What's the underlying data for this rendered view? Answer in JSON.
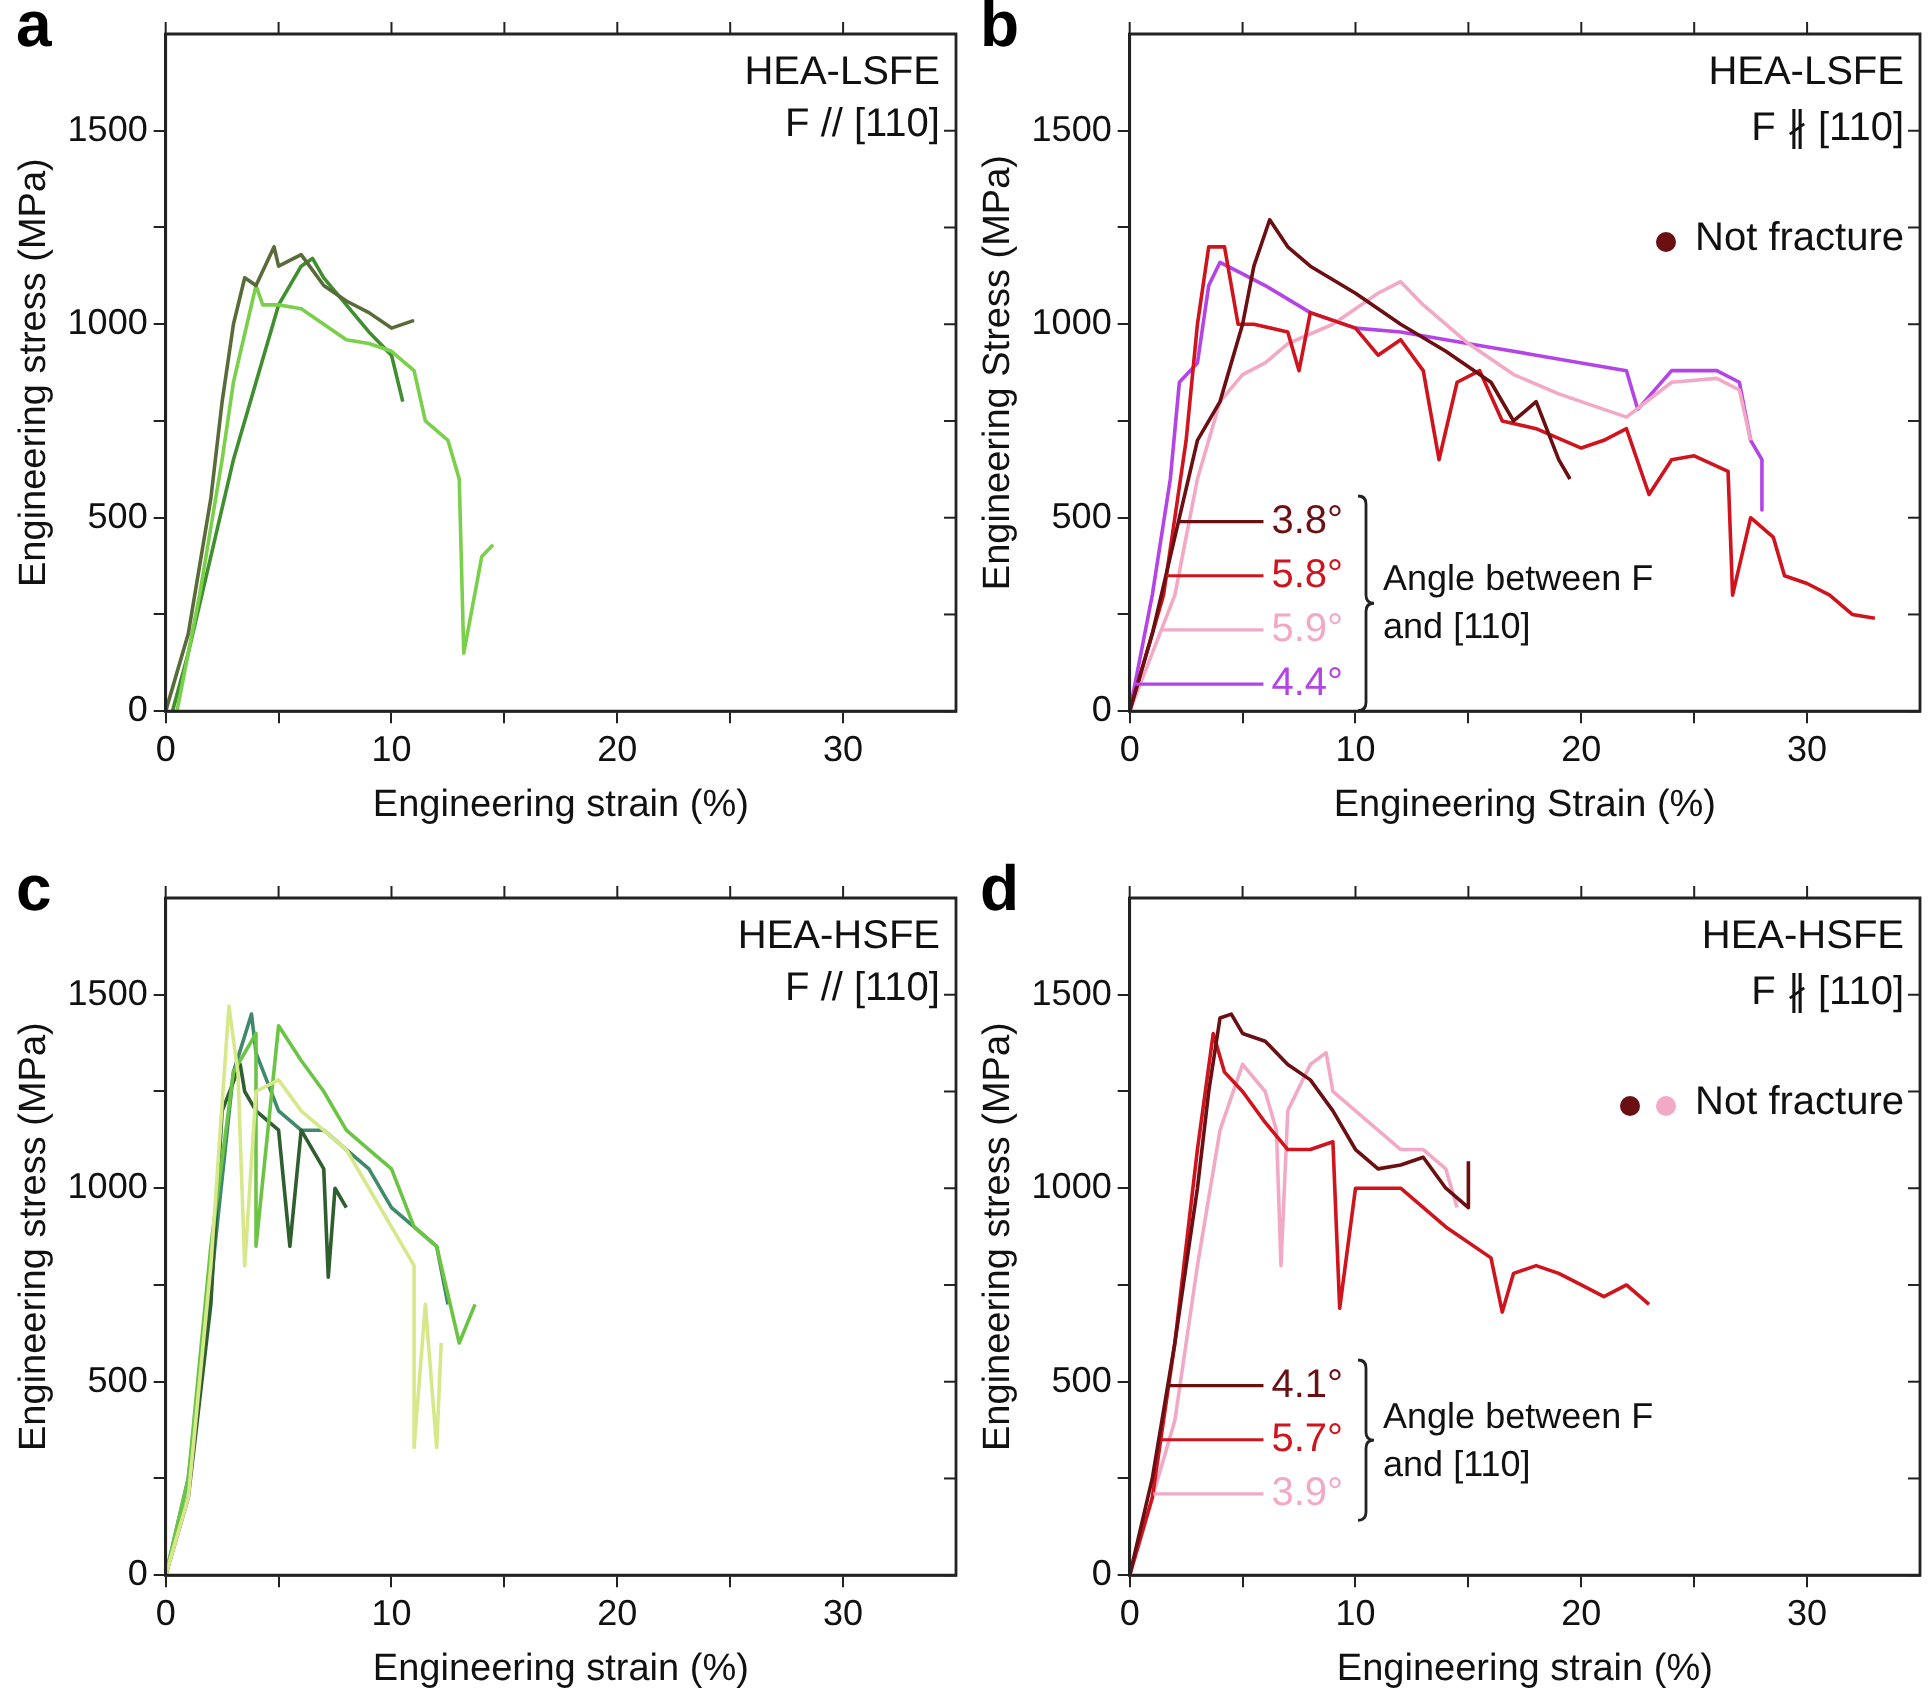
{
  "chart_data": [
    {
      "type": "line",
      "title": "a",
      "xlabel": "Engineering strain (%)",
      "ylabel": "Engineering stress (MPa)",
      "annotations": [
        "HEA-LSFE",
        "F // [110]"
      ],
      "xlim": [
        0,
        35
      ],
      "ylim": [
        0,
        1750
      ],
      "xticks": [
        0,
        {
          "value": 5,
          "label": null
        },
        10,
        {
          "value": 15,
          "label": null
        },
        20,
        {
          "value": 25,
          "label": null
        },
        30
      ],
      "yticks": [
        0,
        {
          "value": 250,
          "label": null
        },
        500,
        {
          "value": 750,
          "label": null
        },
        1000,
        {
          "value": 1250,
          "label": null
        },
        1500
      ],
      "series": [
        {
          "color": "#5a6b3a",
          "x": [
            0,
            1,
            2,
            2.5,
            3,
            3.5,
            4,
            4.8,
            5,
            6,
            7,
            8,
            9,
            10,
            11
          ],
          "values": [
            0,
            200,
            550,
            800,
            1000,
            1120,
            1100,
            1200,
            1150,
            1180,
            1100,
            1060,
            1030,
            990,
            1010
          ]
        },
        {
          "color": "#7ad04a",
          "x": [
            0.5,
            1.5,
            2.5,
            3,
            4,
            4.3,
            5,
            6,
            7,
            8,
            9,
            10,
            11,
            11.5,
            12.5,
            13,
            13.2,
            14,
            14.5
          ],
          "values": [
            0,
            300,
            650,
            850,
            1100,
            1050,
            1050,
            1040,
            1000,
            960,
            950,
            930,
            880,
            750,
            700,
            600,
            150,
            400,
            430
          ]
        },
        {
          "color": "#3f8f2f",
          "x": [
            0.3,
            1,
            2,
            3,
            4,
            5,
            6,
            6.5,
            7,
            8,
            9,
            10,
            10.5
          ],
          "values": [
            0,
            150,
            400,
            650,
            850,
            1050,
            1150,
            1170,
            1120,
            1050,
            980,
            920,
            800
          ]
        }
      ]
    },
    {
      "type": "line",
      "title": "b",
      "legend": "bottom left",
      "xlabel": "Engineering Strain (%)",
      "ylabel": "Engineering Stress (MPa)",
      "annotations": [
        "HEA-LSFE",
        "F ∦ [110]",
        "Not fracture",
        "Angle between F and [110]"
      ],
      "xlim": [
        0,
        35
      ],
      "ylim": [
        0,
        1750
      ],
      "xticks": [
        0,
        {
          "value": 5,
          "label": null
        },
        10,
        {
          "value": 15,
          "label": null
        },
        20,
        {
          "value": 25,
          "label": null
        },
        30
      ],
      "yticks": [
        0,
        {
          "value": 250,
          "label": null
        },
        500,
        {
          "value": 750,
          "label": null
        },
        1000,
        {
          "value": 1250,
          "label": null
        },
        1500
      ],
      "series": [
        {
          "name": "3.8°",
          "color": "#6b0f12",
          "x": [
            0,
            1,
            2,
            3,
            4,
            5,
            5.5,
            6.2,
            7,
            8,
            10,
            12,
            14,
            16,
            17,
            18,
            19,
            19.5
          ],
          "values": [
            0,
            200,
            450,
            700,
            800,
            1000,
            1150,
            1270,
            1200,
            1150,
            1080,
            1000,
            930,
            850,
            750,
            800,
            650,
            600
          ]
        },
        {
          "name": "5.8°",
          "color": "#d0141e",
          "x": [
            0,
            1.5,
            2.5,
            3,
            3.5,
            4.2,
            4.8,
            5.5,
            7,
            7.5,
            8,
            10,
            11,
            12,
            13,
            13.7,
            14.5,
            15.5,
            16.5,
            18,
            20,
            21,
            22,
            23,
            24,
            25,
            26.5,
            26.7,
            27.5,
            28.5,
            29,
            30,
            31,
            32,
            33
          ],
          "values": [
            0,
            300,
            700,
            1000,
            1200,
            1200,
            1000,
            1000,
            980,
            880,
            1030,
            990,
            920,
            960,
            880,
            650,
            850,
            880,
            750,
            730,
            680,
            700,
            730,
            560,
            650,
            660,
            620,
            300,
            500,
            450,
            350,
            330,
            300,
            250,
            240
          ]
        },
        {
          "name": "5.9°",
          "color": "#f2a9c6",
          "x": [
            0,
            2,
            3,
            4,
            5,
            6,
            7,
            9,
            11,
            12,
            13,
            15,
            17,
            19,
            21,
            22,
            24,
            26,
            27,
            27.5
          ],
          "values": [
            0,
            300,
            600,
            800,
            870,
            900,
            950,
            1000,
            1080,
            1110,
            1050,
            950,
            870,
            820,
            780,
            760,
            850,
            860,
            830,
            700
          ]
        },
        {
          "name": "4.4°",
          "color": "#b444e6",
          "x": [
            0,
            1,
            1.8,
            2.2,
            3,
            3.5,
            4,
            5,
            6,
            8,
            10,
            12,
            14,
            16,
            18,
            20,
            22,
            22.5,
            24,
            26,
            27,
            27.5,
            28,
            28
          ],
          "values": [
            0,
            300,
            600,
            850,
            900,
            1100,
            1160,
            1130,
            1100,
            1030,
            990,
            980,
            960,
            940,
            920,
            900,
            880,
            780,
            880,
            880,
            850,
            700,
            650,
            520
          ]
        }
      ]
    },
    {
      "type": "line",
      "title": "c",
      "xlabel": "Engineering strain (%)",
      "ylabel": "Engineering stress (MPa)",
      "annotations": [
        "HEA-HSFE",
        "F // [110]"
      ],
      "xlim": [
        0,
        35
      ],
      "ylim": [
        0,
        1750
      ],
      "xticks": [
        0,
        {
          "value": 5,
          "label": null
        },
        10,
        {
          "value": 15,
          "label": null
        },
        20,
        {
          "value": 25,
          "label": null
        },
        30
      ],
      "yticks": [
        0,
        {
          "value": 250,
          "label": null
        },
        500,
        {
          "value": 750,
          "label": null
        },
        1000,
        {
          "value": 1250,
          "label": null
        },
        1500
      ],
      "series": [
        {
          "color": "#d6e88a",
          "x": [
            0,
            1,
            2,
            2.8,
            3.2,
            3.5,
            4,
            5,
            6,
            8,
            9,
            10,
            11,
            11,
            11.5,
            12,
            12.2
          ],
          "values": [
            0,
            200,
            800,
            1470,
            1300,
            800,
            1250,
            1280,
            1200,
            1100,
            1000,
            900,
            800,
            330,
            700,
            330,
            600
          ]
        },
        {
          "color": "#6cc445",
          "x": [
            0,
            1,
            2,
            3,
            4,
            4,
            5,
            6,
            7,
            8,
            9,
            10,
            11,
            12,
            13,
            13.7
          ],
          "values": [
            0,
            250,
            850,
            1300,
            1400,
            850,
            1420,
            1330,
            1250,
            1150,
            1100,
            1050,
            900,
            850,
            600,
            700
          ]
        },
        {
          "color": "#2f5f2f",
          "x": [
            0,
            1,
            2,
            2.5,
            3.3,
            3.5,
            4,
            5,
            5.5,
            6,
            7,
            7.2,
            7.5,
            8
          ],
          "values": [
            0,
            200,
            700,
            1200,
            1320,
            1250,
            1200,
            1150,
            850,
            1150,
            1050,
            770,
            1000,
            950
          ]
        },
        {
          "color": "#3f8a6a",
          "x": [
            0,
            1,
            2,
            3,
            3.8,
            4,
            5,
            6,
            7,
            8,
            9,
            10,
            11,
            12,
            12.5
          ],
          "values": [
            0,
            250,
            750,
            1300,
            1450,
            1350,
            1200,
            1150,
            1150,
            1100,
            1050,
            950,
            900,
            850,
            700
          ]
        }
      ]
    },
    {
      "type": "line",
      "title": "d",
      "legend": "bottom left",
      "xlabel": "Engineering strain (%)",
      "ylabel": "Engineering stress (MPa)",
      "annotations": [
        "HEA-HSFE",
        "F ∦ [110]",
        "Not fracture",
        "Angle between F and [110]"
      ],
      "xlim": [
        0,
        35
      ],
      "ylim": [
        0,
        1750
      ],
      "xticks": [
        0,
        {
          "value": 5,
          "label": null
        },
        10,
        {
          "value": 15,
          "label": null
        },
        20,
        {
          "value": 25,
          "label": null
        },
        30
      ],
      "yticks": [
        0,
        {
          "value": 250,
          "label": null
        },
        500,
        {
          "value": 750,
          "label": null
        },
        1000,
        {
          "value": 1250,
          "label": null
        },
        1500
      ],
      "series": [
        {
          "name": "4.1°",
          "color": "#6b0f12",
          "x": [
            0,
            1,
            2,
            3,
            3.5,
            4,
            4.5,
            5,
            6,
            7,
            8,
            9,
            10,
            11,
            12,
            13,
            14,
            15,
            15
          ],
          "values": [
            0,
            250,
            600,
            1000,
            1250,
            1440,
            1450,
            1400,
            1380,
            1320,
            1280,
            1200,
            1100,
            1050,
            1060,
            1080,
            1000,
            950,
            1070
          ]
        },
        {
          "name": "5.7°",
          "color": "#d0141e",
          "x": [
            0,
            1,
            2,
            3,
            3.7,
            4.2,
            5,
            6,
            7,
            8,
            9,
            9.3,
            10,
            12,
            14,
            16,
            16.5,
            17,
            18,
            19,
            20,
            21,
            22,
            23
          ],
          "values": [
            0,
            200,
            600,
            1100,
            1400,
            1300,
            1250,
            1170,
            1100,
            1100,
            1120,
            690,
            1000,
            1000,
            900,
            820,
            680,
            780,
            800,
            780,
            750,
            720,
            750,
            700
          ]
        },
        {
          "name": "3.9°",
          "color": "#f2a9c6",
          "x": [
            0,
            1,
            2,
            3,
            4,
            5,
            6,
            6.5,
            6.7,
            7,
            8,
            8.7,
            9,
            10,
            11,
            12,
            13,
            14,
            14.5
          ],
          "values": [
            0,
            200,
            400,
            800,
            1150,
            1320,
            1250,
            1150,
            800,
            1200,
            1320,
            1350,
            1250,
            1200,
            1150,
            1100,
            1100,
            1050,
            950
          ]
        }
      ]
    }
  ]
}
